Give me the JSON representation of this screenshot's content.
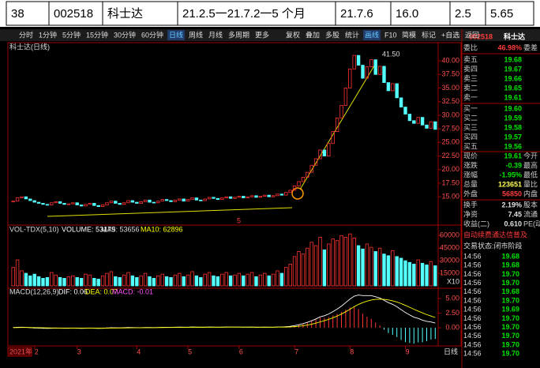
{
  "table": {
    "cells": [
      "38",
      "002518",
      "科士达",
      "21.2.5一21.7.2一5 个月",
      "21.7.6",
      "16.0",
      "2.5",
      "5.65"
    ]
  },
  "toolbar": {
    "tabs": [
      "分时",
      "1分钟",
      "5分钟",
      "15分钟",
      "30分钟",
      "60分钟",
      "日线",
      "周线",
      "月线",
      "多周期",
      "更多"
    ],
    "active_tab": 6,
    "tools": [
      "复权",
      "叠加",
      "多股",
      "统计",
      "画线",
      "F10",
      "简模",
      "标记",
      "+自选",
      "返回"
    ],
    "active_tool": 4
  },
  "chart": {
    "title": "科士达(日线)",
    "peak_label": "41.50",
    "marker_label": "5",
    "closes": [
      14.2,
      14.8,
      15.0,
      14.6,
      14.3,
      14.0,
      13.8,
      13.6,
      13.5,
      13.9,
      14.1,
      13.8,
      13.6,
      13.7,
      13.9,
      13.5,
      13.3,
      13.6,
      13.8,
      13.4,
      13.2,
      13.5,
      13.9,
      14.2,
      13.8,
      13.6,
      13.9,
      14.3,
      14.0,
      13.8,
      14.1,
      14.4,
      14.0,
      13.9,
      14.2,
      14.5,
      14.3,
      14.1,
      14.4,
      14.6,
      14.2,
      14.5,
      14.8,
      14.4,
      14.3,
      14.6,
      14.9,
      14.7,
      14.5,
      14.8,
      15.0,
      14.7,
      14.9,
      15.1,
      14.8,
      15.0,
      15.2,
      14.9,
      15.1,
      15.3,
      15.0,
      15.2,
      15.5,
      15.3,
      15.8,
      16.2,
      17.0,
      17.8,
      18.6,
      19.5,
      20.8,
      22.0,
      23.6,
      22.5,
      24.8,
      27.0,
      29.5,
      31.8,
      35.0,
      38.5,
      41.0,
      39.2,
      36.8,
      38.9,
      40.2,
      37.5,
      39.0,
      36.0,
      34.5,
      35.8,
      33.2,
      31.5,
      30.2,
      29.0,
      28.5,
      29.6,
      28.2,
      27.6,
      28.8,
      27.4
    ],
    "ylim": [
      9.8,
      43.2
    ],
    "yticks": [
      {
        "value": 15,
        "label": "15.00"
      },
      {
        "value": 17.5,
        "label": "17.50"
      },
      {
        "value": 20,
        "label": "20.00"
      },
      {
        "value": 22.5,
        "label": "22.50"
      },
      {
        "value": 25,
        "label": "25.00"
      },
      {
        "value": 27.5,
        "label": "27.50"
      },
      {
        "value": 30,
        "label": "30.00"
      },
      {
        "value": 32.5,
        "label": "32.50"
      },
      {
        "value": 35,
        "label": "35.00"
      },
      {
        "value": 37.5,
        "label": "37.50"
      },
      {
        "value": 40,
        "label": "40.00"
      }
    ]
  },
  "volume": {
    "title": "VOL-TDX(5,10)",
    "stats": [
      "VOLUME: 53179",
      "MA5: 53656",
      "MA10: 62896"
    ],
    "unit_label": "X10",
    "values": [
      22000,
      31000,
      18000,
      15000,
      12000,
      14000,
      11000,
      9000,
      10000,
      16000,
      13000,
      10000,
      9000,
      11000,
      12000,
      10000,
      9000,
      14000,
      13000,
      9000,
      8000,
      12000,
      15000,
      17000,
      11000,
      10000,
      13000,
      16000,
      12000,
      10000,
      12000,
      15000,
      11000,
      9000,
      12000,
      14000,
      11000,
      10000,
      13000,
      15000,
      11000,
      13000,
      17000,
      12000,
      10000,
      14000,
      16000,
      12000,
      11000,
      14000,
      16000,
      12000,
      13000,
      15000,
      12000,
      14000,
      16000,
      11000,
      13000,
      15000,
      12000,
      14000,
      18000,
      15000,
      22000,
      26000,
      35000,
      41000,
      38000,
      45000,
      52000,
      48000,
      58000,
      43000,
      50000,
      56000,
      54000,
      60000,
      58000,
      62000,
      57000,
      48000,
      44000,
      50000,
      46000,
      41000,
      45000,
      38000,
      36000,
      42000,
      35000,
      33000,
      30000,
      28000,
      26000,
      31000,
      27000,
      25000,
      29000,
      24000
    ],
    "ylim": [
      0,
      65000
    ],
    "yticks": [
      15000,
      30000,
      45000,
      60000
    ]
  },
  "macd": {
    "title": "MACD(12,26,9)",
    "stats": [
      "DIF: 0.06",
      "DEA: 0.07",
      "MACD: -0.01"
    ],
    "dif": [
      0.05,
      0.08,
      0.1,
      0.06,
      0.02,
      -0.03,
      -0.06,
      -0.09,
      -0.1,
      -0.08,
      -0.06,
      -0.07,
      -0.09,
      -0.08,
      -0.06,
      -0.08,
      -0.1,
      -0.08,
      -0.06,
      -0.08,
      -0.1,
      -0.08,
      -0.04,
      0,
      -0.01,
      -0.02,
      0.01,
      0.04,
      0.03,
      0.01,
      0.02,
      0.05,
      0.04,
      0.03,
      0.05,
      0.08,
      0.08,
      0.07,
      0.09,
      0.11,
      0.09,
      0.1,
      0.13,
      0.11,
      0.09,
      0.1,
      0.13,
      0.12,
      0.1,
      0.11,
      0.13,
      0.11,
      0.11,
      0.12,
      0.1,
      0.1,
      0.11,
      0.09,
      0.1,
      0.11,
      0.1,
      0.1,
      0.13,
      0.13,
      0.18,
      0.25,
      0.37,
      0.52,
      0.71,
      0.93,
      1.2,
      1.5,
      1.87,
      2.05,
      2.35,
      2.75,
      3.2,
      3.7,
      4.3,
      4.9,
      5.4,
      5.6,
      5.5,
      5.5,
      5.5,
      5.3,
      5.1,
      4.7,
      4.3,
      4.0,
      3.6,
      3.1,
      2.6,
      2.2,
      1.8,
      1.6,
      1.3,
      1.1,
      1.0,
      0.8
    ],
    "dea": [
      0.02,
      0.03,
      0.05,
      0.05,
      0.05,
      0.03,
      0.01,
      -0.01,
      -0.03,
      -0.04,
      -0.04,
      -0.05,
      -0.06,
      -0.06,
      -0.06,
      -0.06,
      -0.07,
      -0.07,
      -0.07,
      -0.07,
      -0.08,
      -0.08,
      -0.07,
      -0.06,
      -0.05,
      -0.04,
      -0.03,
      -0.02,
      -0.01,
      0,
      0,
      0.01,
      0.02,
      0.02,
      0.03,
      0.04,
      0.05,
      0.05,
      0.06,
      0.07,
      0.07,
      0.08,
      0.09,
      0.09,
      0.09,
      0.09,
      0.1,
      0.1,
      0.1,
      0.1,
      0.11,
      0.11,
      0.11,
      0.11,
      0.11,
      0.11,
      0.11,
      0.1,
      0.1,
      0.1,
      0.1,
      0.1,
      0.11,
      0.11,
      0.12,
      0.15,
      0.19,
      0.26,
      0.35,
      0.47,
      0.61,
      0.79,
      1.0,
      1.21,
      1.44,
      1.7,
      2.0,
      2.34,
      2.73,
      3.16,
      3.61,
      4.0,
      4.3,
      4.55,
      4.74,
      4.85,
      4.9,
      4.86,
      4.75,
      4.6,
      4.4,
      4.14,
      3.83,
      3.5,
      3.16,
      2.85,
      2.54,
      2.25,
      2.0,
      1.76
    ],
    "hist": [
      0.06,
      0.1,
      0.1,
      0.02,
      -0.06,
      -0.12,
      -0.14,
      -0.16,
      -0.14,
      -0.08,
      -0.04,
      -0.04,
      -0.06,
      -0.04,
      0,
      -0.04,
      -0.06,
      -0.02,
      0.02,
      -0.02,
      -0.04,
      0,
      0.06,
      0.12,
      0.08,
      0.04,
      0.08,
      0.12,
      0.08,
      0.02,
      0.04,
      0.06,
      0.04,
      0.02,
      0.04,
      0.06,
      0.06,
      0.02,
      0.06,
      0.08,
      0.04,
      0.04,
      0.08,
      0.04,
      0,
      0.02,
      0.06,
      0.04,
      0,
      0.02,
      0.04,
      0,
      0,
      0.02,
      -0.02,
      -0.02,
      0,
      -0.02,
      0,
      0.02,
      0,
      0,
      0.06,
      0.04,
      0.12,
      0.2,
      0.36,
      0.52,
      0.72,
      0.92,
      1.18,
      1.42,
      1.74,
      1.68,
      1.82,
      2.1,
      2.4,
      2.72,
      3.14,
      3.48,
      3.58,
      3.2,
      2.4,
      1.9,
      1.52,
      0.9,
      0.4,
      -0.32,
      -0.9,
      -1.2,
      -1.6,
      -2.08,
      -2.46,
      -2.6,
      -2.72,
      -2.5,
      -2.48,
      -2.3,
      -2.0,
      -1.92
    ],
    "ylim": [
      -3.1,
      6.35
    ],
    "yticks": [
      {
        "value": 0,
        "label": "0.00"
      },
      {
        "value": 2.5,
        "label": "2.50"
      },
      {
        "value": 5,
        "label": "5.00"
      }
    ]
  },
  "xaxis": {
    "year_label": "2021年",
    "period_label": "日线",
    "ticks": [
      {
        "value": 5,
        "label": "2"
      },
      {
        "value": 15,
        "label": "3"
      },
      {
        "value": 29,
        "label": "4"
      },
      {
        "value": 41,
        "label": "5"
      },
      {
        "value": 53,
        "label": "6"
      },
      {
        "value": 66,
        "label": "7"
      },
      {
        "value": 79,
        "label": "8"
      },
      {
        "value": 92,
        "label": "9"
      }
    ]
  },
  "quote": {
    "code": "002518",
    "name": "科士达",
    "rows": [
      {
        "label": "委比",
        "value": "46.98%",
        "extra": "委差",
        "color": "#ff3c3c"
      },
      {
        "label": "卖五",
        "value": "19.68",
        "color": "#00e600"
      },
      {
        "label": "卖四",
        "value": "19.67",
        "color": "#00e600"
      },
      {
        "label": "卖三",
        "value": "19.66",
        "color": "#00e600"
      },
      {
        "label": "卖二",
        "value": "19.65",
        "color": "#00e600"
      },
      {
        "label": "卖一",
        "value": "19.61",
        "color": "#00e600"
      },
      {
        "label": "买一",
        "value": "19.60",
        "color": "#00e600"
      },
      {
        "label": "买二",
        "value": "19.59",
        "color": "#00e600"
      },
      {
        "label": "买三",
        "value": "19.58",
        "color": "#00e600"
      },
      {
        "label": "买四",
        "value": "19.57",
        "color": "#00e600"
      },
      {
        "label": "买五",
        "value": "19.56",
        "color": "#00e600"
      },
      {
        "label": "现价",
        "value": "19.61",
        "extra": "今开",
        "color": "#00e600"
      },
      {
        "label": "涨跌",
        "value": "-0.39",
        "extra": "最高",
        "color": "#00e600"
      },
      {
        "label": "涨幅",
        "value": "-1.95%",
        "extra": "最低",
        "color": "#00e600"
      },
      {
        "label": "总量",
        "value": "123651",
        "extra": "量比",
        "color": "#ffff54"
      },
      {
        "label": "外盘",
        "value": "56850",
        "extra": "内盘",
        "color": "#ff3c3c"
      },
      {
        "label": "换手",
        "value": "2.19%",
        "extra": "股本",
        "color": "#e0e0e0"
      },
      {
        "label": "净资",
        "value": "7.45",
        "extra": "流通",
        "color": "#e0e0e0"
      },
      {
        "label": "收益(二)",
        "value": "0.610",
        "extra": "PE(动)",
        "color": "#e0e0e0"
      }
    ],
    "notice": "自动续费通达信普及",
    "status": "交易状态:闭市阶段",
    "ticks": [
      {
        "time": "14:56",
        "price": "19.68"
      },
      {
        "time": "14:56",
        "price": "19.68"
      },
      {
        "time": "14:56",
        "price": "19.70"
      },
      {
        "time": "14:56",
        "price": "19.70"
      },
      {
        "time": "14:56",
        "price": "19.68"
      },
      {
        "time": "14:56",
        "price": "19.70"
      },
      {
        "time": "14:56",
        "price": "19.69"
      },
      {
        "time": "14:56",
        "price": "19.70"
      },
      {
        "time": "14:56",
        "price": "19.70"
      },
      {
        "time": "14:56",
        "price": "19.70"
      },
      {
        "time": "14:56",
        "price": "19.70"
      },
      {
        "time": "14:56",
        "price": "19.70"
      }
    ]
  }
}
